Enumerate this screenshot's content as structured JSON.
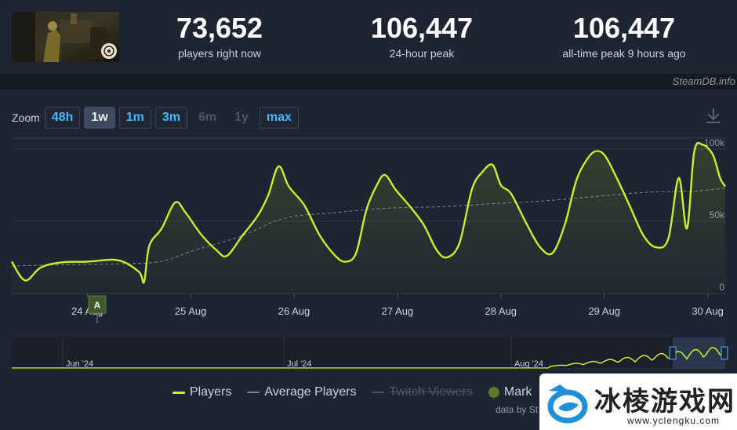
{
  "stats": [
    {
      "value": "73,652",
      "label": "players right now"
    },
    {
      "value": "106,447",
      "label": "24-hour peak"
    },
    {
      "value": "106,447",
      "label": "all-time peak 9 hours ago"
    }
  ],
  "credit_top": "SteamDB.info",
  "zoom": {
    "label": "Zoom",
    "options": [
      {
        "label": "48h",
        "state": "enabled"
      },
      {
        "label": "1w",
        "state": "active"
      },
      {
        "label": "1m",
        "state": "enabled"
      },
      {
        "label": "3m",
        "state": "enabled"
      },
      {
        "label": "6m",
        "state": "disabled"
      },
      {
        "label": "1y",
        "state": "disabled"
      },
      {
        "label": "max",
        "state": "enabled"
      }
    ]
  },
  "chart_data": {
    "type": "line",
    "x_ticks": [
      "24 Aug",
      "25 Aug",
      "26 Aug",
      "27 Aug",
      "28 Aug",
      "29 Aug",
      "30 Aug"
    ],
    "y_ticks": [
      "0",
      "50k",
      "100k"
    ],
    "ylim": [
      0,
      106447
    ],
    "annotation": "A",
    "series": [
      {
        "name": "Players",
        "color": "#c6f12b",
        "points": [
          [
            23.27,
            22000
          ],
          [
            23.4,
            9000
          ],
          [
            23.55,
            18000
          ],
          [
            23.75,
            21500
          ],
          [
            24.0,
            22000
          ],
          [
            24.3,
            23000
          ],
          [
            24.5,
            15000
          ],
          [
            24.55,
            8000
          ],
          [
            24.6,
            33000
          ],
          [
            24.72,
            45000
          ],
          [
            24.85,
            63000
          ],
          [
            24.95,
            56000
          ],
          [
            25.1,
            41000
          ],
          [
            25.25,
            30000
          ],
          [
            25.35,
            26000
          ],
          [
            25.5,
            40000
          ],
          [
            25.65,
            54000
          ],
          [
            25.75,
            68000
          ],
          [
            25.85,
            88000
          ],
          [
            25.95,
            74000
          ],
          [
            26.1,
            61000
          ],
          [
            26.25,
            40000
          ],
          [
            26.4,
            26000
          ],
          [
            26.5,
            22000
          ],
          [
            26.6,
            28000
          ],
          [
            26.7,
            58000
          ],
          [
            26.8,
            75000
          ],
          [
            26.88,
            82000
          ],
          [
            26.98,
            72000
          ],
          [
            27.1,
            62000
          ],
          [
            27.25,
            48000
          ],
          [
            27.38,
            30000
          ],
          [
            27.48,
            25000
          ],
          [
            27.6,
            35000
          ],
          [
            27.72,
            72000
          ],
          [
            27.82,
            84000
          ],
          [
            27.92,
            89000
          ],
          [
            28.0,
            75000
          ],
          [
            28.1,
            69000
          ],
          [
            28.25,
            48000
          ],
          [
            28.38,
            32000
          ],
          [
            28.5,
            28000
          ],
          [
            28.62,
            48000
          ],
          [
            28.72,
            76000
          ],
          [
            28.8,
            89000
          ],
          [
            28.9,
            98000
          ],
          [
            29.0,
            96000
          ],
          [
            29.12,
            80000
          ],
          [
            29.25,
            60000
          ],
          [
            29.38,
            40000
          ],
          [
            29.5,
            32000
          ],
          [
            29.62,
            38000
          ],
          [
            29.72,
            80000
          ],
          [
            29.8,
            45000
          ],
          [
            29.87,
            98000
          ],
          [
            29.95,
            103000
          ],
          [
            30.05,
            96000
          ],
          [
            30.12,
            80000
          ],
          [
            30.17,
            74000
          ]
        ]
      },
      {
        "name": "Average Players",
        "color": "#7a8593",
        "points": [
          [
            23.27,
            19000
          ],
          [
            23.8,
            20000
          ],
          [
            24.3,
            20500
          ],
          [
            24.7,
            22000
          ],
          [
            25.0,
            29000
          ],
          [
            25.5,
            40000
          ],
          [
            25.9,
            52000
          ],
          [
            26.4,
            56000
          ],
          [
            26.9,
            59000
          ],
          [
            27.4,
            60000
          ],
          [
            27.9,
            62000
          ],
          [
            28.4,
            64000
          ],
          [
            28.9,
            67000
          ],
          [
            29.4,
            70000
          ],
          [
            29.9,
            71000
          ],
          [
            30.17,
            73000
          ]
        ]
      }
    ],
    "navigator": {
      "labels": [
        "Jun '24",
        "Jul '24",
        "Aug '24"
      ]
    }
  },
  "legend": [
    {
      "label": "Players",
      "color": "#c6f12b",
      "enabled": true
    },
    {
      "label": "Average Players",
      "color": "#7a8593",
      "enabled": true
    },
    {
      "label": "Twitch Viewers",
      "color": "#4a5566",
      "enabled": false
    },
    {
      "label": "Mark",
      "color": "#5a7a2a",
      "enabled": true
    }
  ],
  "credit_bottom": "data by St",
  "watermark": {
    "title": "冰棱游戏网",
    "url": "www.yclengku.com"
  }
}
